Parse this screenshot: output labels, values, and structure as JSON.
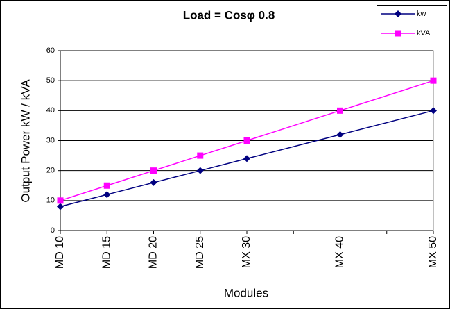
{
  "chart_data": {
    "type": "line",
    "title": "Load = Cosφ 0.8",
    "x_label": "Modules",
    "y_label": "Output Power kW / kVA",
    "x": [
      10,
      15,
      20,
      25,
      30,
      40,
      50
    ],
    "xlim": [
      10,
      50
    ],
    "xticks": [
      {
        "value": 10,
        "label": "MD 10"
      },
      {
        "value": 15,
        "label": "MD 15"
      },
      {
        "value": 20,
        "label": "MD 20"
      },
      {
        "value": 25,
        "label": "MD 25"
      },
      {
        "value": 30,
        "label": "MX 30"
      },
      {
        "value": 35,
        "label": null
      },
      {
        "value": 40,
        "label": "MX 40"
      },
      {
        "value": 45,
        "label": null
      },
      {
        "value": 50,
        "label": "MX 50"
      }
    ],
    "ylim": [
      0,
      60
    ],
    "yticks": [
      0,
      10,
      20,
      30,
      40,
      50,
      60
    ],
    "grid": true,
    "legend": "top-right",
    "series": [
      {
        "name": "kw",
        "color": "#000080",
        "marker": "diamond",
        "values": [
          8,
          12,
          16,
          20,
          24,
          32,
          40
        ]
      },
      {
        "name": "kVA",
        "color": "#ff00ff",
        "marker": "square",
        "values": [
          10,
          15,
          20,
          25,
          30,
          40,
          50
        ]
      }
    ]
  }
}
